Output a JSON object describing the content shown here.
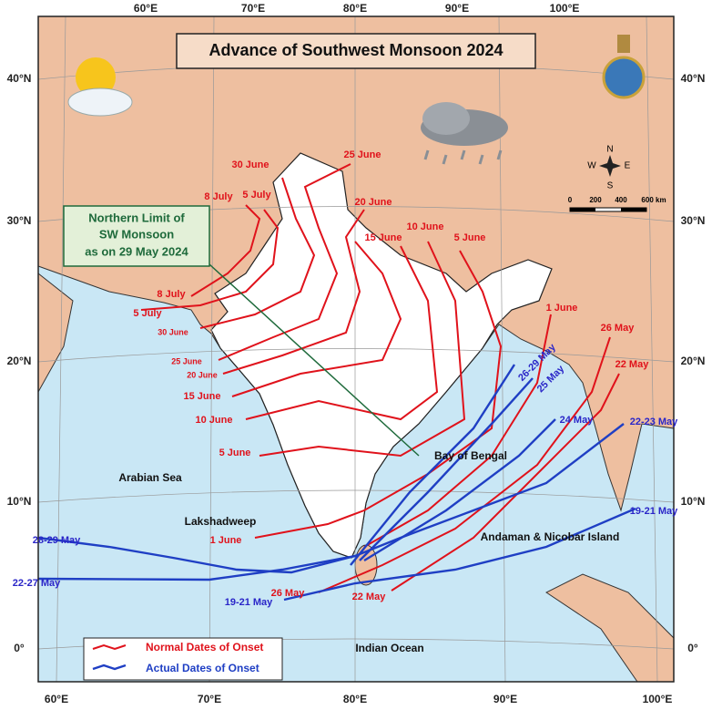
{
  "title": "Advance of Southwest Monsoon 2024",
  "graticule": {
    "lon_top": [
      "60°E",
      "70°E",
      "80°E",
      "90°E",
      "100°E"
    ],
    "lon_bottom": [
      "60°E",
      "70°E",
      "80°E",
      "90°E",
      "100°E"
    ],
    "lat_left": [
      "40°N",
      "30°N",
      "20°N",
      "10°N",
      "0°"
    ],
    "lat_right": [
      "40°N",
      "30°N",
      "20°N",
      "10°N",
      "0°"
    ]
  },
  "northern_limit": [
    "Northern Limit of",
    "SW Monsoon",
    "as on 29 May 2024"
  ],
  "normal_onset_labels": [
    "25 June",
    "30 June",
    "8 July",
    "5 July",
    "20 June",
    "10 June",
    "5 June",
    "15 June",
    "8 July",
    "5 July",
    "30 June",
    "1 June",
    "25 June",
    "20 June",
    "15 June",
    "10 June",
    "5 June",
    "26 May",
    "22 May",
    "1 June",
    "26 May",
    "22 May"
  ],
  "actual_onset_labels": [
    "26-29 May",
    "25 May",
    "24 May",
    "22-23 May",
    "19-21 May",
    "28-29 May",
    "22-27 May",
    "19-21 May"
  ],
  "places": [
    "Arabian Sea",
    "Bay of Bengal",
    "Lakshadweep",
    "Andaman & Nicobar Island",
    "Indian Ocean"
  ],
  "legend": [
    "Normal Dates of Onset",
    "Actual Dates of Onset"
  ],
  "scale": [
    "0",
    "200",
    "400",
    "600 km"
  ],
  "compass": [
    "N",
    "E",
    "S",
    "W"
  ]
}
